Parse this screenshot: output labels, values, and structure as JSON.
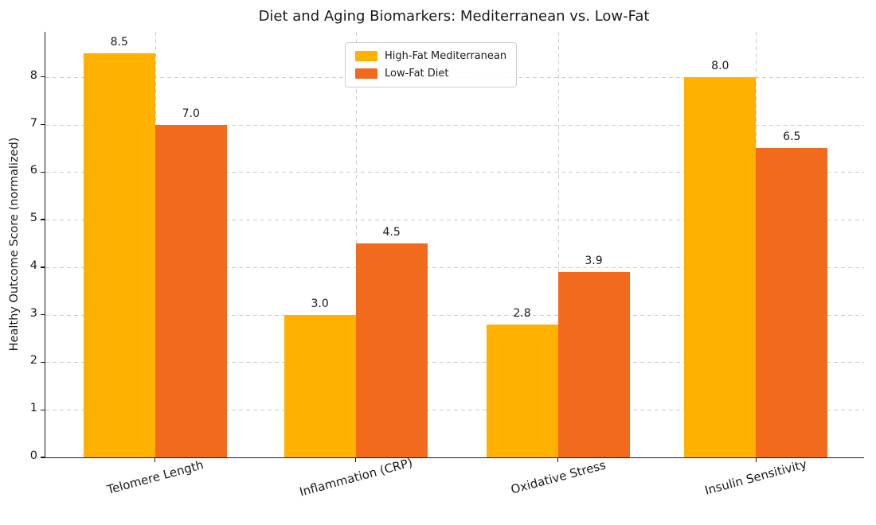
{
  "title": "Diet and Aging Biomarkers: Mediterranean vs. Low-Fat",
  "chart_data": {
    "type": "bar",
    "categories": [
      "Telomere Length",
      "Inflammation (CRP)",
      "Oxidative Stress",
      "Insulin Sensitivity"
    ],
    "series": [
      {
        "name": "High-Fat Mediterranean",
        "color": "#FFB000",
        "values": [
          8.5,
          3.0,
          2.8,
          8.0
        ],
        "labels": [
          "8.5",
          "3.0",
          "2.8",
          "8.0"
        ]
      },
      {
        "name": "Low-Fat Diet",
        "color": "#F26A1E",
        "values": [
          7.0,
          4.5,
          3.9,
          6.5
        ],
        "labels": [
          "7.0",
          "4.5",
          "3.9",
          "6.5"
        ]
      }
    ],
    "title": "Diet and Aging Biomarkers: Mediterranean vs. Low-Fat",
    "xlabel": "",
    "ylabel": "Healthy Outcome Score (normalized)",
    "ylim": [
      0,
      8.95
    ],
    "yticks": [
      0,
      1,
      2,
      3,
      4,
      5,
      6,
      7,
      8
    ],
    "grid": true,
    "grid_style": "dashed",
    "legend_position": "upper center",
    "legend_entries": [
      "High-Fat Mediterranean",
      "Low-Fat Diet"
    ]
  }
}
